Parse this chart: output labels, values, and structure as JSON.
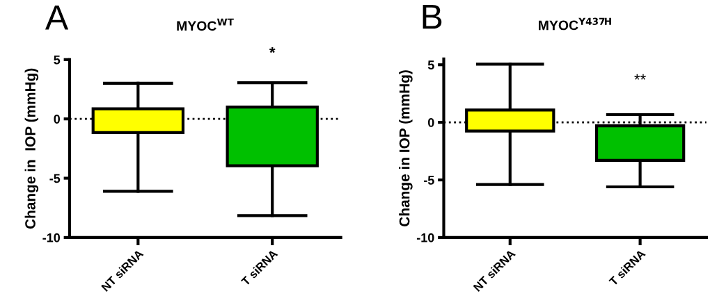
{
  "chart_data": [
    {
      "type": "box",
      "title": "MYOC$^{WT}$",
      "ylabel": "Change in  IOP (mmHg)",
      "categories": [
        "NT siRNA",
        "T siRNA"
      ],
      "boxes": [
        {
          "low": -6.1,
          "q1": -1.15,
          "median": -0.2,
          "q3": 0.85,
          "high": 3.0
        },
        {
          "low": -8.15,
          "q1": -3.95,
          "median": -2.4,
          "q3": 1.0,
          "high": 3.05
        }
      ],
      "colors": [
        "#ffff00",
        "#00c000"
      ],
      "ylim": [
        -10,
        5
      ],
      "yticks": [
        -10,
        -5,
        0,
        5
      ],
      "ref_lines": [
        {
          "axis": "y",
          "value": 0,
          "line_style": "dotted",
          "color": "#000000"
        }
      ],
      "annotations": [
        "A",
        "*"
      ]
    },
    {
      "type": "box",
      "title": "MYOC$^{Y437H}$",
      "ylabel": "Change in IOP (mmHg)",
      "categories": [
        "NT siRNA",
        "T siRNA"
      ],
      "boxes": [
        {
          "low": -5.4,
          "q1": -0.75,
          "median": 0.5,
          "q3": 1.07,
          "high": 5.05
        },
        {
          "low": -5.6,
          "q1": -3.3,
          "median": -2.4,
          "q3": -0.3,
          "high": 0.67
        }
      ],
      "colors": [
        "#ffff00",
        "#00c000"
      ],
      "ylim": [
        -10,
        5.5
      ],
      "yticks": [
        -10,
        -5,
        0,
        5
      ],
      "ref_lines": [
        {
          "axis": "y",
          "value": 0,
          "line_style": "dotted",
          "color": "#000000"
        }
      ],
      "annotations": [
        "B",
        "**"
      ]
    }
  ]
}
